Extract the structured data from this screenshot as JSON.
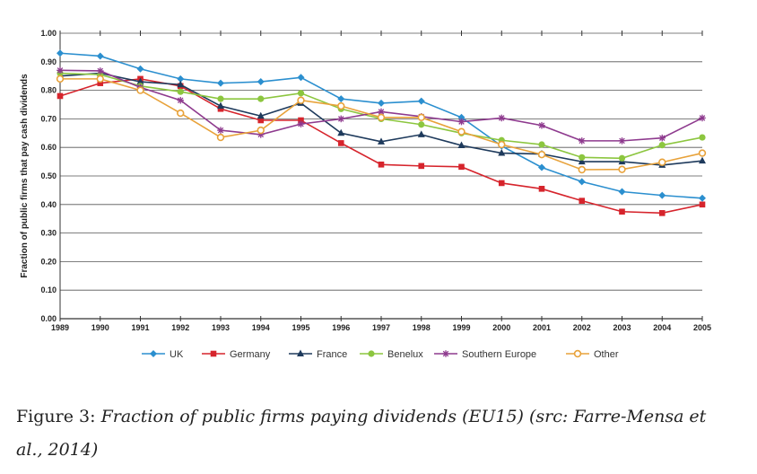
{
  "chart_data": {
    "type": "line",
    "xlabel": "",
    "ylabel": "Fraction of public firms that pay cash dividends",
    "ylim": [
      0,
      1
    ],
    "yticks": [
      "0.00",
      "0.10",
      "0.20",
      "0.30",
      "0.40",
      "0.50",
      "0.60",
      "0.70",
      "0.80",
      "0.90",
      "1.00"
    ],
    "x": [
      "1989",
      "1990",
      "1991",
      "1992",
      "1993",
      "1994",
      "1995",
      "1996",
      "1997",
      "1998",
      "1999",
      "2000",
      "2001",
      "2002",
      "2003",
      "2004",
      "2005"
    ],
    "grid": true,
    "legend_position": "bottom",
    "series": [
      {
        "name": "UK",
        "color": "#2b8fcf",
        "marker": "diamond",
        "values": [
          0.93,
          0.92,
          0.875,
          0.84,
          0.825,
          0.83,
          0.845,
          0.77,
          0.755,
          0.762,
          0.705,
          0.605,
          0.53,
          0.48,
          0.445,
          0.432,
          0.422
        ]
      },
      {
        "name": "Germany",
        "color": "#d6242c",
        "marker": "square",
        "values": [
          0.78,
          0.825,
          0.84,
          0.815,
          0.735,
          0.695,
          0.695,
          0.615,
          0.54,
          0.535,
          0.532,
          0.475,
          0.455,
          0.413,
          0.375,
          0.37,
          0.4
        ]
      },
      {
        "name": "France",
        "color": "#1e3a5c",
        "marker": "triangle",
        "values": [
          0.85,
          0.86,
          0.83,
          0.82,
          0.745,
          0.71,
          0.755,
          0.65,
          0.62,
          0.645,
          0.607,
          0.58,
          0.577,
          0.55,
          0.55,
          0.538,
          0.553
        ]
      },
      {
        "name": "Benelux",
        "color": "#8cc63f",
        "marker": "circle",
        "values": [
          0.86,
          0.855,
          0.815,
          0.795,
          0.77,
          0.77,
          0.79,
          0.735,
          0.7,
          0.68,
          0.65,
          0.625,
          0.61,
          0.565,
          0.562,
          0.608,
          0.635
        ]
      },
      {
        "name": "Southern Europe",
        "color": "#8e3a8e",
        "marker": "star",
        "values": [
          0.87,
          0.868,
          0.81,
          0.765,
          0.66,
          0.645,
          0.682,
          0.7,
          0.725,
          0.708,
          0.69,
          0.703,
          0.677,
          0.623,
          0.623,
          0.633,
          0.703
        ]
      },
      {
        "name": "Other",
        "color": "#e8a23a",
        "marker": "open-circle",
        "values": [
          0.84,
          0.84,
          0.8,
          0.72,
          0.635,
          0.66,
          0.765,
          0.745,
          0.705,
          0.705,
          0.655,
          0.61,
          0.575,
          0.522,
          0.523,
          0.548,
          0.58
        ]
      }
    ]
  },
  "caption": {
    "label": "Figure 3:",
    "text": "Fraction of public firms paying dividends (EU15) (src: Farre-Mensa et al., 2014)"
  }
}
